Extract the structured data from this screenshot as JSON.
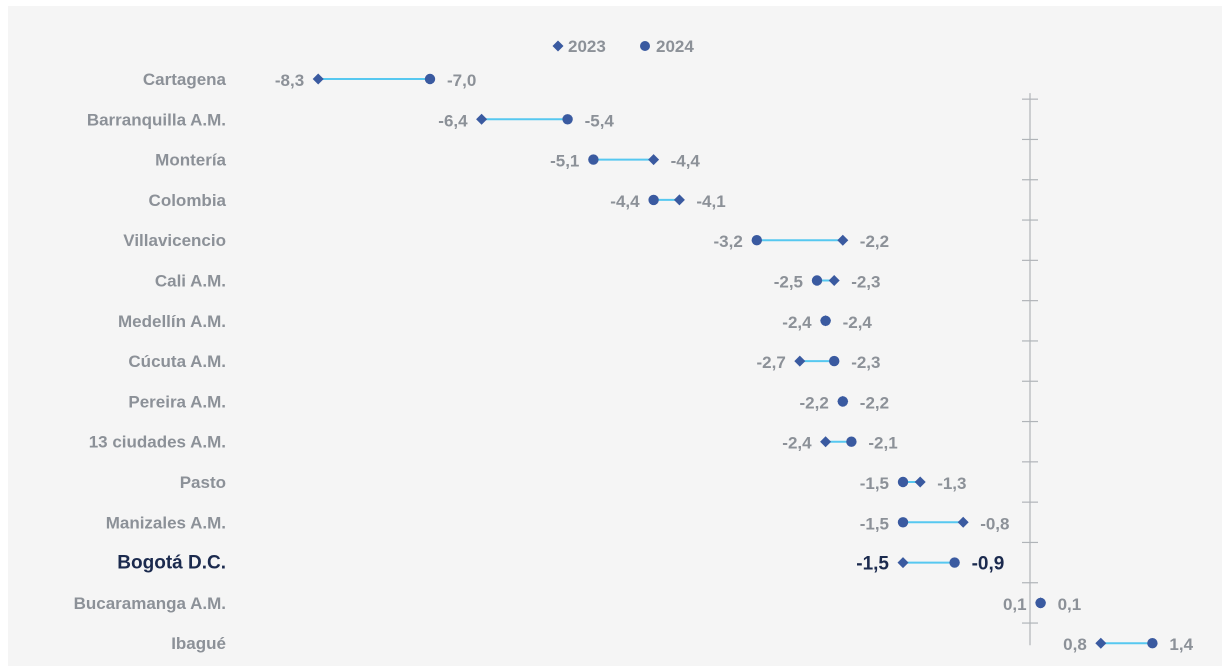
{
  "chart_data": {
    "type": "dumbbell",
    "legend": [
      {
        "name": "2023",
        "marker": "diamond"
      },
      {
        "name": "2024",
        "marker": "circle"
      }
    ],
    "legend_position": "top-center",
    "highlight_category": "Bogotá D.C.",
    "xlim": [
      -8.6,
      1.6
    ],
    "grid": false,
    "categories": [
      "Cartagena",
      "Barranquilla A.M.",
      "Montería",
      "Colombia",
      "Villavicencio",
      "Cali A.M.",
      "Medellín A.M.",
      "Cúcuta A.M.",
      "Pereira A.M.",
      "13 ciudades A.M.",
      "Pasto",
      "Manizales A.M.",
      "Bogotá D.C.",
      "Bucaramanga A.M.",
      "Ibagué"
    ],
    "series": [
      {
        "name": "2023",
        "values": [
          -8.3,
          -6.4,
          -4.4,
          -4.1,
          -2.2,
          -2.3,
          -2.4,
          -2.7,
          -2.2,
          -2.4,
          -1.3,
          -0.8,
          -1.5,
          0.1,
          0.8
        ]
      },
      {
        "name": "2024",
        "values": [
          -7.0,
          -5.4,
          -5.1,
          -4.4,
          -3.2,
          -2.5,
          -2.4,
          -2.3,
          -2.2,
          -2.1,
          -1.5,
          -1.5,
          -0.9,
          0.1,
          1.4
        ]
      }
    ],
    "left_labels": [
      "-8,3",
      "-6,4",
      "-5,1",
      "-4,4",
      "-3,2",
      "-2,5",
      "-2,4",
      "-2,7",
      "-2,2",
      "-2,4",
      "-1,5",
      "-1,5",
      "-1,5",
      "0,1",
      "0,8"
    ],
    "right_labels": [
      "-7,0",
      "-5,4",
      "-4,4",
      "-4,1",
      "-2,2",
      "-2,3",
      "-2,4",
      "-2,3",
      "-2,2",
      "-2,1",
      "-1,3",
      "-0,8",
      "-0,9",
      "0,1",
      "1,4"
    ]
  },
  "colors": {
    "marker": "#3a5aa0",
    "connector": "#56c8f0",
    "label": "#8c9198",
    "highlight": "#1b2a4e",
    "axis": "#b0b4b8",
    "background": "#f5f5f5"
  }
}
